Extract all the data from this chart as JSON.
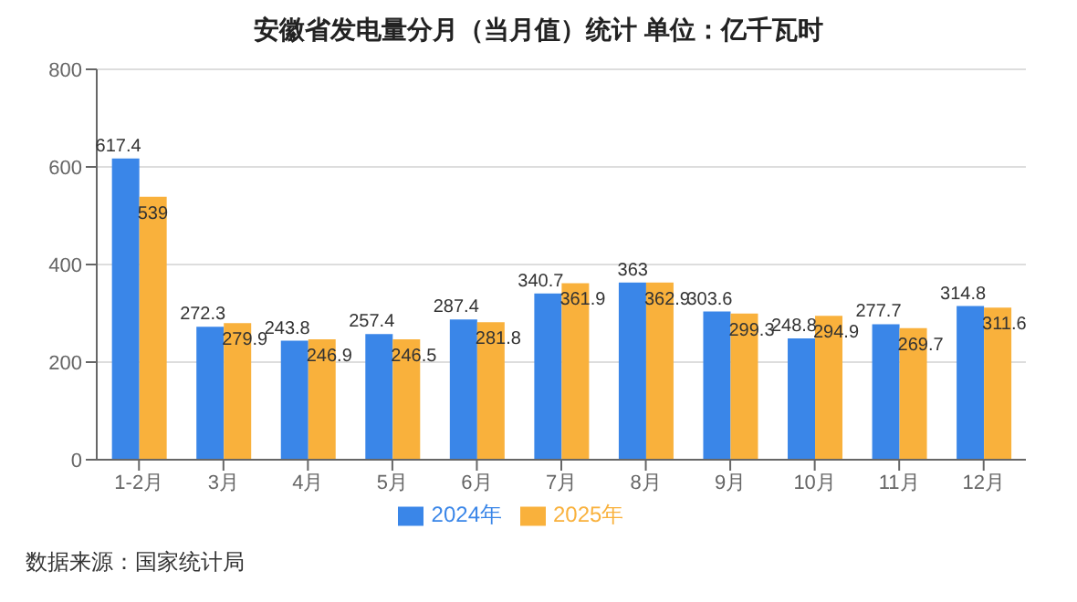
{
  "chart_data": {
    "type": "bar",
    "title": "安徽省发电量分月（当月值）统计 单位：亿千瓦时",
    "categories": [
      "1-2月",
      "3月",
      "4月",
      "5月",
      "6月",
      "7月",
      "8月",
      "9月",
      "10月",
      "11月",
      "12月"
    ],
    "series": [
      {
        "name": "2024年",
        "color": "#3a86e8",
        "values": [
          617.4,
          272.3,
          243.8,
          257.4,
          287.4,
          340.7,
          363,
          303.6,
          248.8,
          277.7,
          314.8
        ]
      },
      {
        "name": "2025年",
        "color": "#f9b13c",
        "values": [
          539,
          279.9,
          246.9,
          246.5,
          281.8,
          361.9,
          362.9,
          299.3,
          294.9,
          269.7,
          311.6
        ]
      }
    ],
    "ylim": [
      0,
      800
    ],
    "yticks": [
      0,
      200,
      400,
      600,
      800
    ],
    "grid": "y",
    "legend": "bottom",
    "data_labels": true,
    "annotations": [
      "数据来源：国家统计局"
    ]
  }
}
